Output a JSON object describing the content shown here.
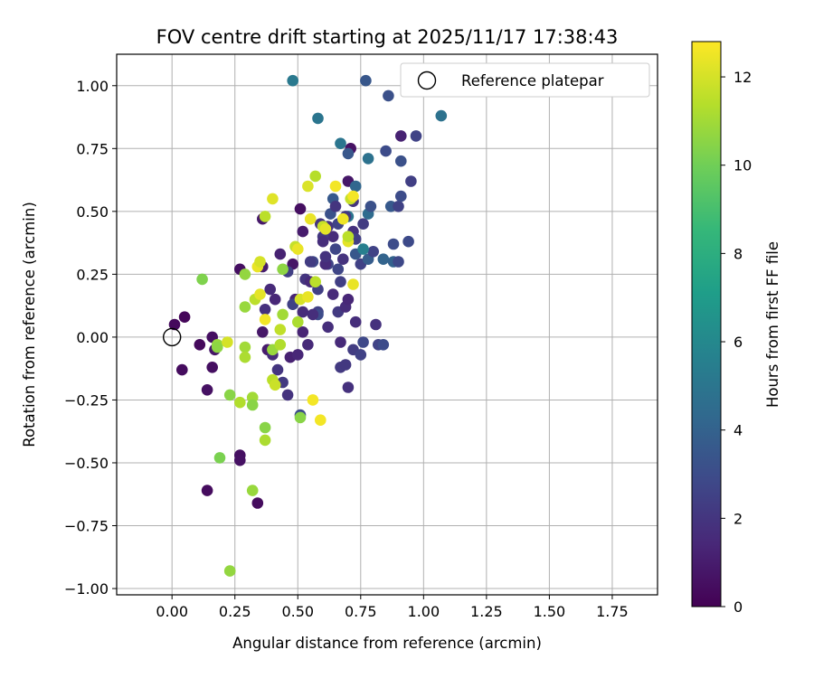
{
  "chart_data": {
    "type": "scatter",
    "title": "FOV centre drift starting at 2025/11/17 17:38:43",
    "xlabel": "Angular distance from reference (arcmin)",
    "ylabel": "Rotation from reference (arcmin)",
    "xlim": [
      -0.22,
      1.93
    ],
    "ylim": [
      -1.025,
      1.125
    ],
    "xticks": [
      0.0,
      0.25,
      0.5,
      0.75,
      1.0,
      1.25,
      1.5,
      1.75
    ],
    "xtick_labels": [
      "0.00",
      "0.25",
      "0.50",
      "0.75",
      "1.00",
      "1.25",
      "1.50",
      "1.75"
    ],
    "yticks": [
      -1.0,
      -0.75,
      -0.5,
      -0.25,
      0.0,
      0.25,
      0.5,
      0.75,
      1.0
    ],
    "ytick_labels": [
      "−1.00",
      "−0.75",
      "−0.50",
      "−0.25",
      "0.00",
      "0.25",
      "0.50",
      "0.75",
      "1.00"
    ],
    "grid": true,
    "legend": {
      "position": "top-right",
      "entries": [
        "Reference platepar"
      ]
    },
    "reference": {
      "x": 0.0,
      "y": 0.0,
      "marker": "open-circle"
    },
    "colorbar": {
      "label": "Hours from first FF file",
      "colormap": "viridis",
      "range": [
        0,
        12.8
      ],
      "ticks": [
        0,
        2,
        4,
        6,
        8,
        10,
        12
      ],
      "tick_labels": [
        "0",
        "2",
        "4",
        "6",
        "8",
        "10",
        "12"
      ],
      "stops": [
        "#440154",
        "#482878",
        "#3e4989",
        "#31688e",
        "#26828e",
        "#1f9e89",
        "#35b779",
        "#6ece58",
        "#b5de2b",
        "#fde725"
      ]
    },
    "points": [
      [
        0.01,
        0.05,
        0.3
      ],
      [
        0.05,
        0.08,
        0.2
      ],
      [
        0.04,
        -0.13,
        0.4
      ],
      [
        0.11,
        -0.03,
        0.3
      ],
      [
        0.16,
        0.0,
        0.5
      ],
      [
        0.17,
        -0.05,
        0.8
      ],
      [
        0.16,
        -0.12,
        0.5
      ],
      [
        0.14,
        -0.21,
        0.6
      ],
      [
        0.14,
        -0.61,
        0.4
      ],
      [
        0.27,
        -0.47,
        0.5
      ],
      [
        0.27,
        -0.49,
        0.6
      ],
      [
        0.34,
        -0.66,
        0.4
      ],
      [
        0.27,
        0.27,
        0.5
      ],
      [
        0.36,
        0.28,
        1.0
      ],
      [
        0.43,
        0.33,
        1.2
      ],
      [
        0.48,
        0.29,
        0.7
      ],
      [
        0.51,
        0.51,
        0.5
      ],
      [
        0.52,
        0.42,
        1.0
      ],
      [
        0.36,
        0.47,
        0.9
      ],
      [
        0.37,
        0.11,
        1.8
      ],
      [
        0.39,
        0.19,
        1.5
      ],
      [
        0.41,
        0.15,
        1.4
      ],
      [
        0.36,
        0.02,
        0.8
      ],
      [
        0.38,
        -0.05,
        1.0
      ],
      [
        0.4,
        -0.07,
        1.6
      ],
      [
        0.42,
        -0.13,
        2.0
      ],
      [
        0.44,
        -0.18,
        2.2
      ],
      [
        0.46,
        -0.23,
        1.9
      ],
      [
        0.47,
        -0.08,
        1.2
      ],
      [
        0.5,
        -0.07,
        1.4
      ],
      [
        0.49,
        0.15,
        1.3
      ],
      [
        0.52,
        0.1,
        1.6
      ],
      [
        0.53,
        0.23,
        2.0
      ],
      [
        0.56,
        0.3,
        2.8
      ],
      [
        0.58,
        0.1,
        2.5
      ],
      [
        0.58,
        0.09,
        3.0
      ],
      [
        0.61,
        0.29,
        1.8
      ],
      [
        0.62,
        0.04,
        1.7
      ],
      [
        0.64,
        0.17,
        1.5
      ],
      [
        0.64,
        0.4,
        1.6
      ],
      [
        0.66,
        0.27,
        2.7
      ],
      [
        0.66,
        0.1,
        2.2
      ],
      [
        0.67,
        -0.02,
        1.5
      ],
      [
        0.67,
        0.22,
        2.4
      ],
      [
        0.68,
        0.31,
        1.9
      ],
      [
        0.69,
        0.12,
        1.6
      ],
      [
        0.7,
        0.15,
        1.4
      ],
      [
        0.7,
        0.62,
        0.8
      ],
      [
        0.71,
        0.75,
        0.6
      ],
      [
        0.7,
        0.73,
        3.5
      ],
      [
        0.72,
        0.54,
        2.0
      ],
      [
        0.72,
        0.42,
        1.8
      ],
      [
        0.73,
        0.33,
        3.5
      ],
      [
        0.73,
        0.06,
        1.7
      ],
      [
        0.72,
        -0.05,
        2.3
      ],
      [
        0.76,
        -0.02,
        2.8
      ],
      [
        0.75,
        0.29,
        2.5
      ],
      [
        0.76,
        0.45,
        2.3
      ],
      [
        0.78,
        0.31,
        3.7
      ],
      [
        0.78,
        0.49,
        4.5
      ],
      [
        0.79,
        0.52,
        3.2
      ],
      [
        0.8,
        0.34,
        2.6
      ],
      [
        0.81,
        0.05,
        1.8
      ],
      [
        0.82,
        -0.03,
        2.6
      ],
      [
        0.84,
        -0.03,
        3.0
      ],
      [
        0.84,
        0.31,
        4.1
      ],
      [
        0.85,
        0.74,
        3.0
      ],
      [
        0.86,
        0.96,
        3.2
      ],
      [
        0.87,
        0.52,
        3.6
      ],
      [
        0.88,
        0.3,
        4.0
      ],
      [
        0.88,
        0.37,
        3.0
      ],
      [
        0.9,
        0.3,
        2.8
      ],
      [
        0.9,
        0.52,
        2.5
      ],
      [
        0.91,
        0.8,
        1.2
      ],
      [
        0.91,
        0.56,
        3.0
      ],
      [
        0.91,
        0.7,
        3.2
      ],
      [
        0.94,
        0.38,
        2.9
      ],
      [
        0.95,
        0.62,
        2.4
      ],
      [
        0.97,
        0.8,
        2.6
      ],
      [
        1.07,
        0.88,
        4.8
      ],
      [
        0.48,
        1.02,
        5.2
      ],
      [
        0.77,
        1.02,
        3.5
      ],
      [
        0.58,
        0.87,
        5.0
      ],
      [
        0.67,
        0.77,
        5.0
      ],
      [
        0.78,
        0.71,
        4.8
      ],
      [
        0.64,
        0.55,
        3.6
      ],
      [
        0.73,
        0.6,
        4.2
      ],
      [
        0.7,
        0.48,
        5.0
      ],
      [
        0.76,
        0.35,
        5.5
      ],
      [
        0.63,
        0.49,
        3.2
      ],
      [
        0.58,
        0.19,
        2.4
      ],
      [
        0.55,
        0.22,
        1.5
      ],
      [
        0.52,
        0.02,
        1.3
      ],
      [
        0.54,
        -0.03,
        1.5
      ],
      [
        0.56,
        0.09,
        1.7
      ],
      [
        0.6,
        0.4,
        2.1
      ],
      [
        0.62,
        0.44,
        1.9
      ],
      [
        0.65,
        0.52,
        2.0
      ],
      [
        0.67,
        -0.12,
        2.2
      ],
      [
        0.69,
        -0.11,
        2.1
      ],
      [
        0.7,
        -0.2,
        1.8
      ],
      [
        0.75,
        -0.07,
        2.5
      ],
      [
        0.65,
        0.35,
        2.7
      ],
      [
        0.66,
        0.45,
        2.6
      ],
      [
        0.46,
        0.26,
        2.4
      ],
      [
        0.48,
        0.13,
        2.5
      ],
      [
        0.55,
        0.3,
        2.3
      ],
      [
        0.62,
        0.29,
        2.6
      ],
      [
        0.59,
        0.45,
        2.0
      ],
      [
        0.61,
        0.29,
        1.6
      ],
      [
        0.51,
        -0.31,
        3.0
      ],
      [
        0.61,
        0.32,
        1.9
      ],
      [
        0.73,
        0.39,
        2.4
      ],
      [
        0.69,
        0.48,
        2.1
      ],
      [
        0.6,
        0.38,
        1.7
      ],
      [
        0.12,
        0.23,
        10.3
      ],
      [
        0.18,
        -0.03,
        10.8
      ],
      [
        0.18,
        -0.04,
        10.6
      ],
      [
        0.22,
        -0.02,
        12.0
      ],
      [
        0.23,
        -0.23,
        10.5
      ],
      [
        0.27,
        -0.26,
        11.3
      ],
      [
        0.29,
        0.12,
        10.8
      ],
      [
        0.29,
        -0.04,
        11.0
      ],
      [
        0.29,
        -0.08,
        11.2
      ],
      [
        0.29,
        0.25,
        10.7
      ],
      [
        0.33,
        0.15,
        11.5
      ],
      [
        0.32,
        -0.24,
        11.0
      ],
      [
        0.32,
        -0.27,
        10.5
      ],
      [
        0.32,
        -0.61,
        10.8
      ],
      [
        0.19,
        -0.48,
        10.2
      ],
      [
        0.23,
        -0.93,
        10.7
      ],
      [
        0.35,
        0.17,
        12.3
      ],
      [
        0.34,
        0.28,
        12.4
      ],
      [
        0.35,
        0.3,
        12.0
      ],
      [
        0.37,
        -0.36,
        10.5
      ],
      [
        0.37,
        -0.41,
        11.2
      ],
      [
        0.37,
        0.07,
        12.6
      ],
      [
        0.37,
        0.48,
        11.5
      ],
      [
        0.4,
        0.55,
        12.2
      ],
      [
        0.4,
        -0.05,
        10.8
      ],
      [
        0.4,
        -0.17,
        11.5
      ],
      [
        0.41,
        -0.19,
        11.8
      ],
      [
        0.43,
        0.03,
        11.6
      ],
      [
        0.43,
        -0.03,
        11.3
      ],
      [
        0.44,
        0.09,
        11.0
      ],
      [
        0.44,
        0.27,
        10.6
      ],
      [
        0.49,
        0.36,
        11.7
      ],
      [
        0.5,
        0.35,
        12.4
      ],
      [
        0.5,
        0.06,
        11.2
      ],
      [
        0.51,
        -0.32,
        10.5
      ],
      [
        0.51,
        0.15,
        12.0
      ],
      [
        0.54,
        0.6,
        12.1
      ],
      [
        0.54,
        0.16,
        12.4
      ],
      [
        0.55,
        0.47,
        12.4
      ],
      [
        0.56,
        -0.25,
        12.6
      ],
      [
        0.57,
        0.22,
        11.5
      ],
      [
        0.57,
        0.64,
        11.4
      ],
      [
        0.59,
        -0.33,
        12.6
      ],
      [
        0.6,
        0.44,
        11.7
      ],
      [
        0.61,
        0.43,
        12.3
      ],
      [
        0.65,
        0.6,
        12.6
      ],
      [
        0.7,
        0.38,
        12.3
      ],
      [
        0.71,
        0.55,
        11.7
      ],
      [
        0.72,
        0.56,
        12.6
      ],
      [
        0.72,
        0.21,
        12.4
      ],
      [
        0.68,
        0.47,
        12.5
      ],
      [
        0.7,
        0.4,
        11.5
      ]
    ]
  }
}
